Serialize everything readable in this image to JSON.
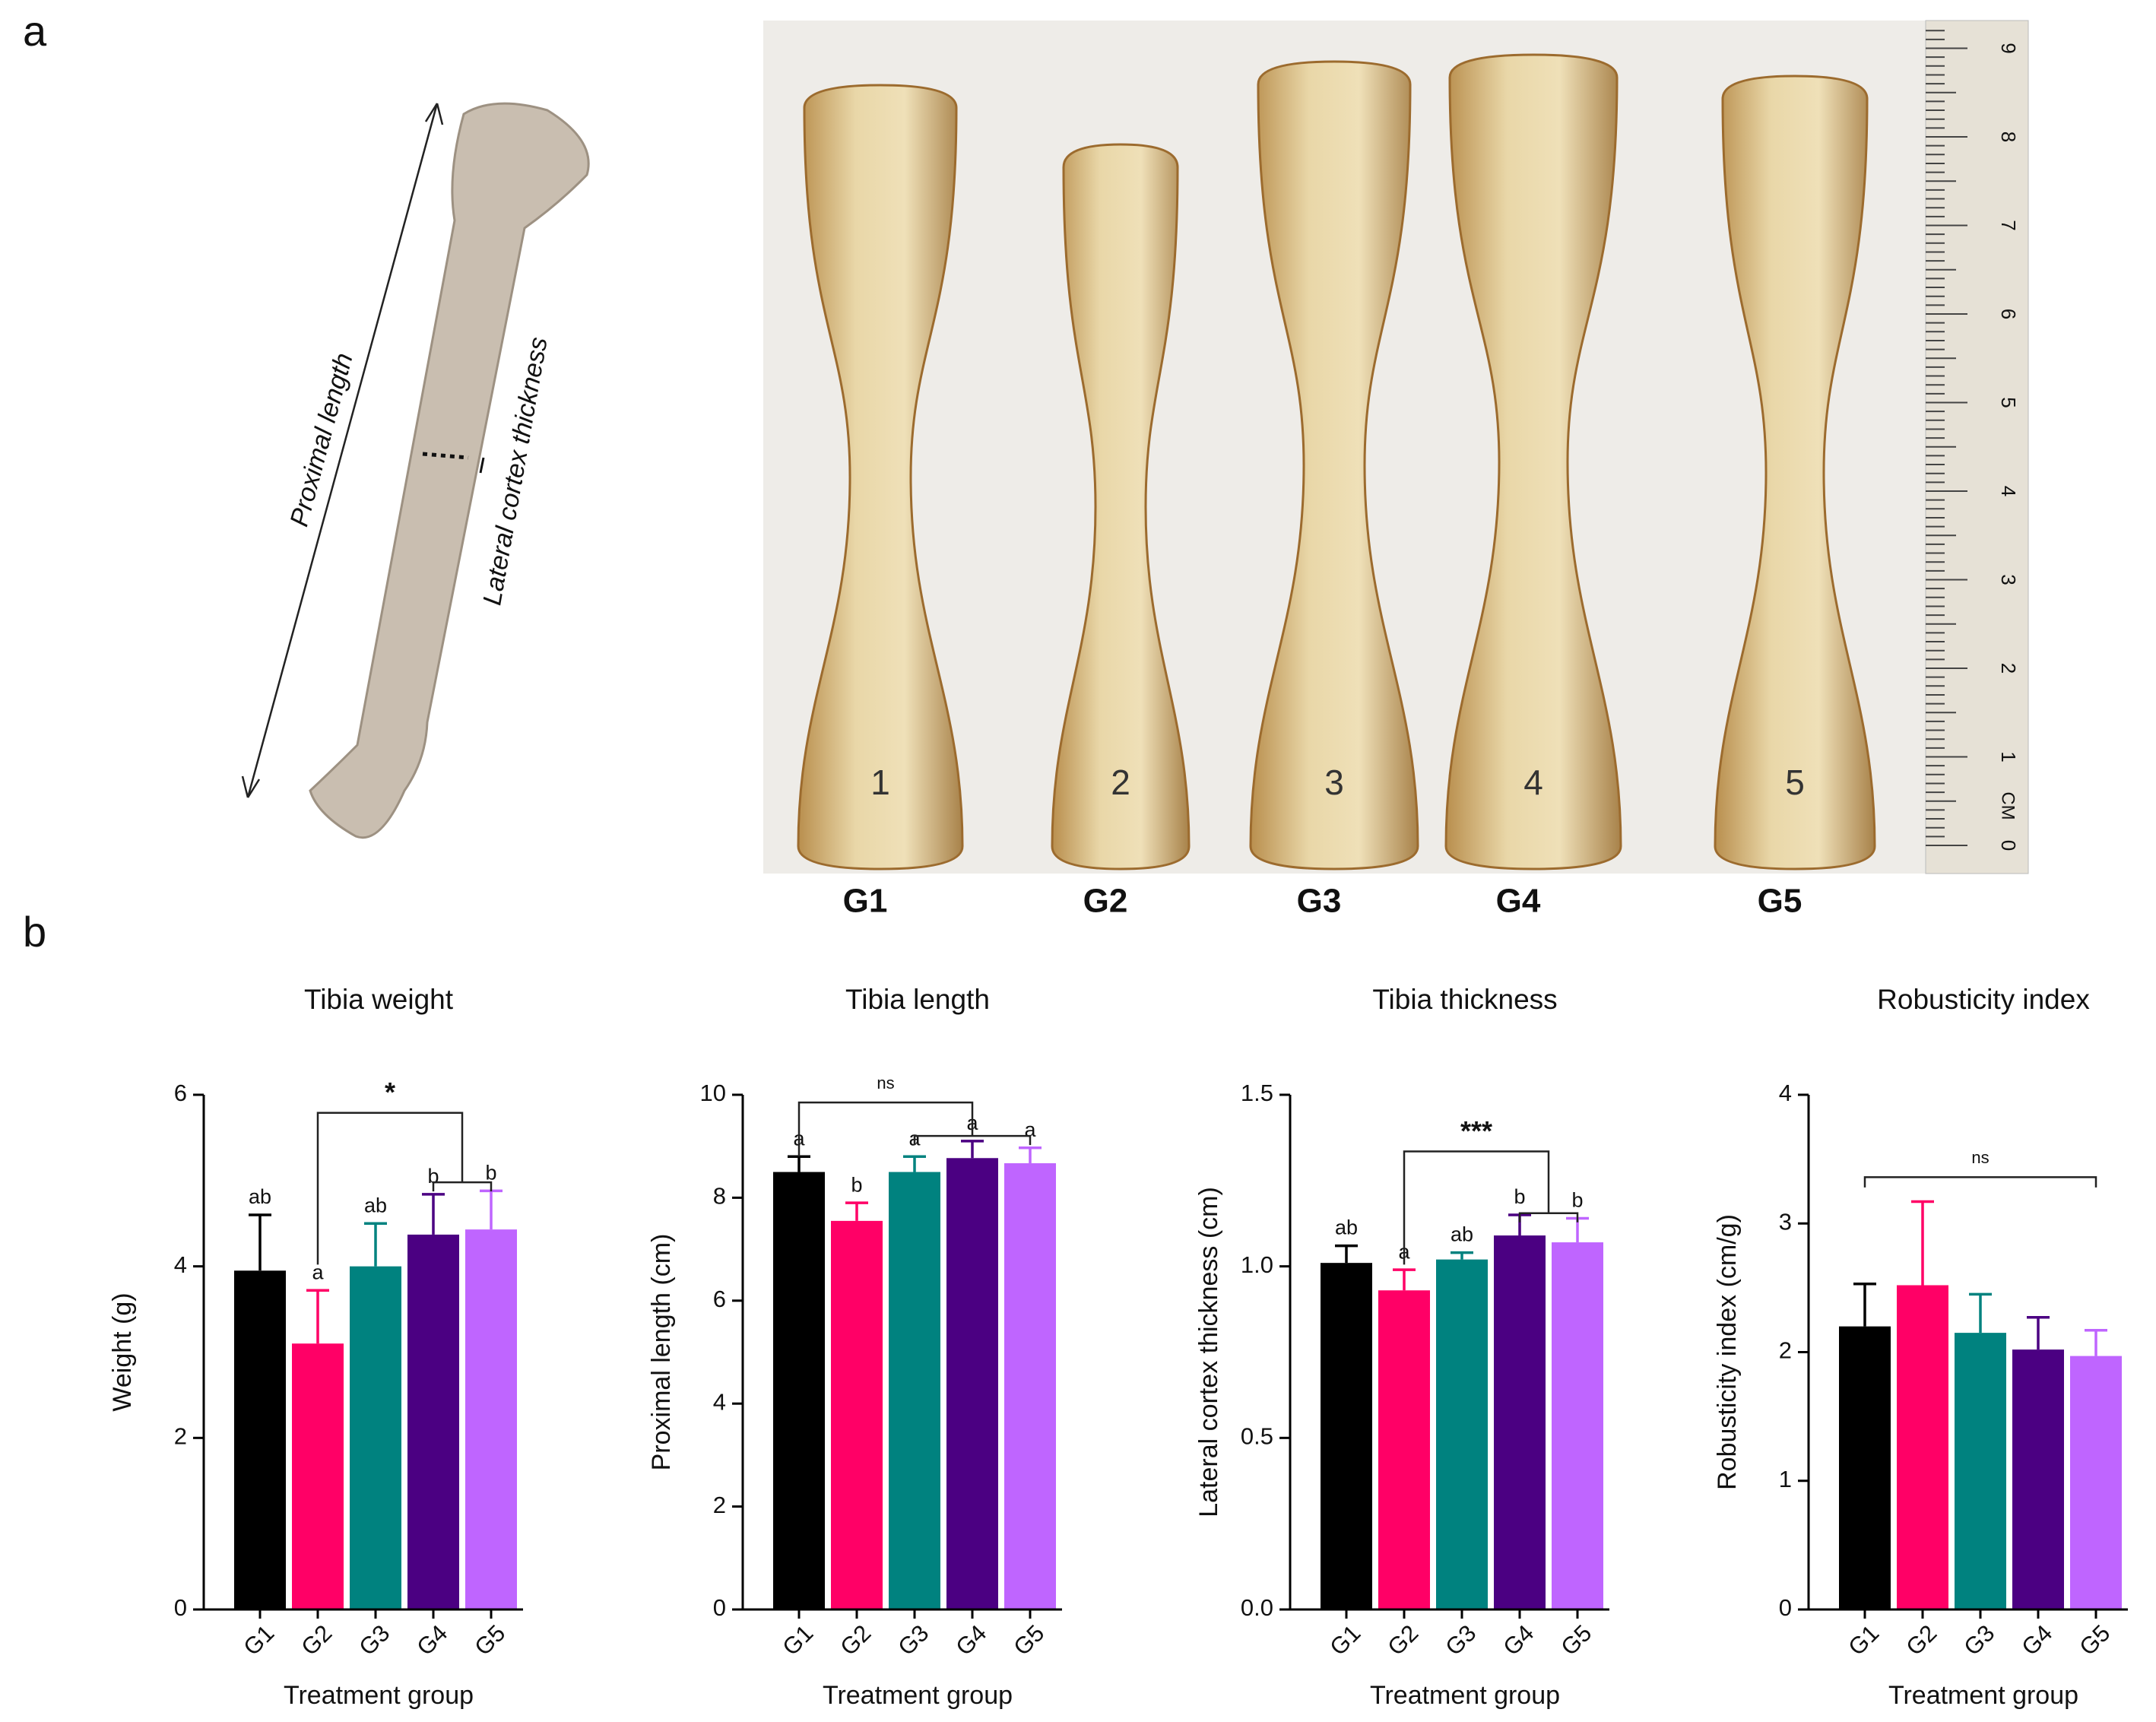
{
  "panel_labels": [
    "a",
    "b"
  ],
  "illustration": {
    "labels": [
      "Proximal length",
      "Lateral cortex thickness"
    ]
  },
  "photo": {
    "group_labels": [
      "G1",
      "G2",
      "G3",
      "G4",
      "G5"
    ],
    "bone_numbers": [
      "1",
      "2",
      "3",
      "4",
      "5"
    ],
    "ruler": {
      "unit": "CM",
      "labels": [
        "0",
        "1",
        "2",
        "3",
        "4",
        "5",
        "6",
        "7",
        "8",
        "9"
      ]
    }
  },
  "chart_data": [
    {
      "type": "bar",
      "title": "Tibia weight",
      "ylabel": "Weight (g)",
      "xlabel": "Treatment group",
      "categories": [
        "G1",
        "G2",
        "G3",
        "G4",
        "G5"
      ],
      "values": [
        3.95,
        3.1,
        4.0,
        4.37,
        4.43
      ],
      "errors": [
        0.65,
        0.62,
        0.5,
        0.47,
        0.45
      ],
      "colors": [
        "#000000",
        "#ff0066",
        "#00827f",
        "#4b0082",
        "#bf65ff"
      ],
      "annotations": [
        "ab",
        "a",
        "ab",
        "b",
        "b"
      ],
      "significance": "*",
      "ylim": [
        0,
        6
      ],
      "yticks": [
        0,
        2,
        4,
        6
      ]
    },
    {
      "type": "bar",
      "title": "Tibia length",
      "ylabel": "Proximal length (cm)",
      "xlabel": "Treatment group",
      "categories": [
        "G1",
        "G2",
        "G3",
        "G4",
        "G5"
      ],
      "values": [
        8.5,
        7.55,
        8.5,
        8.77,
        8.67
      ],
      "errors": [
        0.3,
        0.35,
        0.3,
        0.33,
        0.3
      ],
      "colors": [
        "#000000",
        "#ff0066",
        "#00827f",
        "#4b0082",
        "#bf65ff"
      ],
      "annotations": [
        "a",
        "b",
        "a",
        "a",
        "a"
      ],
      "significance": "ns",
      "ylim": [
        0,
        10
      ],
      "yticks": [
        0,
        2,
        4,
        6,
        8,
        10
      ]
    },
    {
      "type": "bar",
      "title": "Tibia thickness",
      "ylabel": "Lateral cortex thickness (cm)",
      "xlabel": "Treatment group",
      "categories": [
        "G1",
        "G2",
        "G3",
        "G4",
        "G5"
      ],
      "values": [
        1.01,
        0.93,
        1.02,
        1.09,
        1.07
      ],
      "errors": [
        0.05,
        0.06,
        0.02,
        0.06,
        0.07
      ],
      "colors": [
        "#000000",
        "#ff0066",
        "#00827f",
        "#4b0082",
        "#bf65ff"
      ],
      "annotations": [
        "ab",
        "a",
        "ab",
        "b",
        "b"
      ],
      "significance": "***",
      "ylim": [
        0,
        1.5
      ],
      "yticks": [
        {
          "value": 0,
          "label": "0.0"
        },
        0.5,
        {
          "value": 1,
          "label": "1.0"
        },
        1.5
      ]
    },
    {
      "type": "bar",
      "title": "Robusticity index",
      "ylabel": "Robusticity index (cm/g)",
      "xlabel": "Treatment group",
      "categories": [
        "G1",
        "G2",
        "G3",
        "G4",
        "G5"
      ],
      "values": [
        2.2,
        2.52,
        2.15,
        2.02,
        1.97
      ],
      "errors": [
        0.33,
        0.65,
        0.3,
        0.25,
        0.2
      ],
      "colors": [
        "#000000",
        "#ff0066",
        "#00827f",
        "#4b0082",
        "#bf65ff"
      ],
      "significance": "ns",
      "ylim": [
        0,
        4
      ],
      "yticks": [
        0,
        1,
        2,
        3,
        4
      ]
    }
  ]
}
